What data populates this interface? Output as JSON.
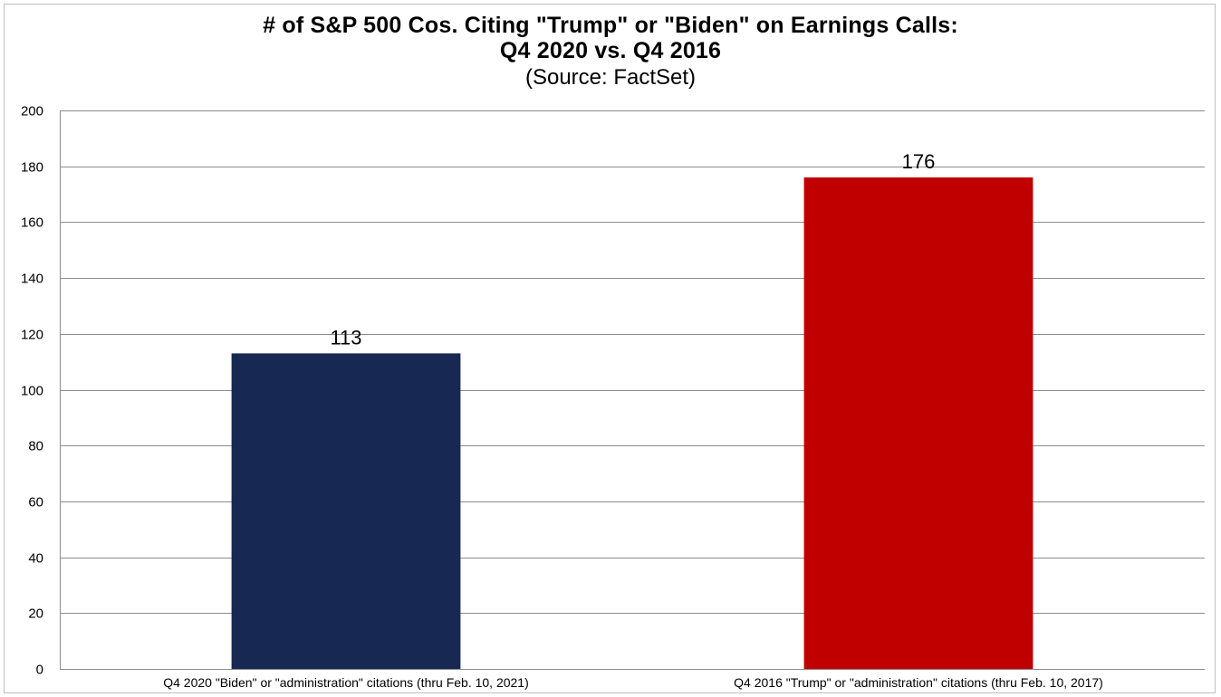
{
  "chart_data": {
    "type": "bar",
    "title": "# of S&P 500 Cos. Citing \"Trump\" or \"Biden\" on Earnings Calls:",
    "title_line2": "Q4 2020 vs. Q4 2016",
    "subtitle": "(Source: FactSet)",
    "xlabel": "",
    "ylabel": "",
    "categories": [
      "Q4 2020 \"Biden\" or \"administration\" citations (thru Feb. 10, 2021)",
      "Q4 2016 \"Trump\" or \"administration\" citations (thru Feb. 10, 2017)"
    ],
    "values": [
      113,
      176
    ],
    "data_labels": [
      "113",
      "176"
    ],
    "bar_colors": [
      "#172852",
      "#c00000"
    ],
    "ylim": [
      0,
      200
    ],
    "yticks": [
      0,
      20,
      40,
      60,
      80,
      100,
      120,
      140,
      160,
      180,
      200
    ],
    "gridlines": true,
    "legend": "none"
  }
}
